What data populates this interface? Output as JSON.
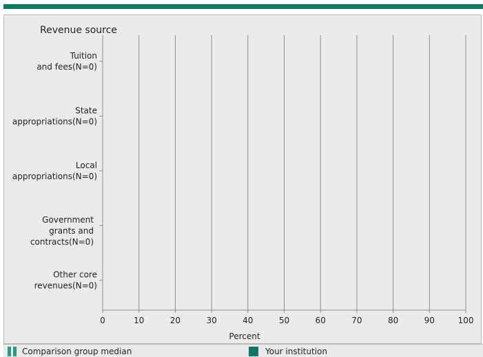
{
  "chart_data": {
    "type": "bar",
    "orientation": "horizontal",
    "title": "Revenue source",
    "xlabel": "Percent",
    "xlim": [
      0,
      100
    ],
    "xticks": [
      0,
      10,
      20,
      30,
      40,
      50,
      60,
      70,
      80,
      90,
      100
    ],
    "grid": true,
    "categories": [
      [
        "Tuition",
        "and fees(N=0)"
      ],
      [
        "State",
        "appropriations(N=0)"
      ],
      [
        "Local",
        "appropriations(N=0)"
      ],
      [
        "Government",
        "grants and",
        "contracts(N=0)"
      ],
      [
        "Other core",
        "revenues(N=0)"
      ]
    ],
    "series": [
      {
        "name": "Comparison group median",
        "values": [
          null,
          null,
          null,
          null,
          null
        ]
      },
      {
        "name": "Your institution",
        "values": [
          null,
          null,
          null,
          null,
          null
        ]
      }
    ],
    "legend_position": "bottom"
  },
  "colors": {
    "accent": "#0f7864",
    "median": "#2a9a84",
    "grid": "#8c8c8c",
    "background": "#ebebeb"
  }
}
